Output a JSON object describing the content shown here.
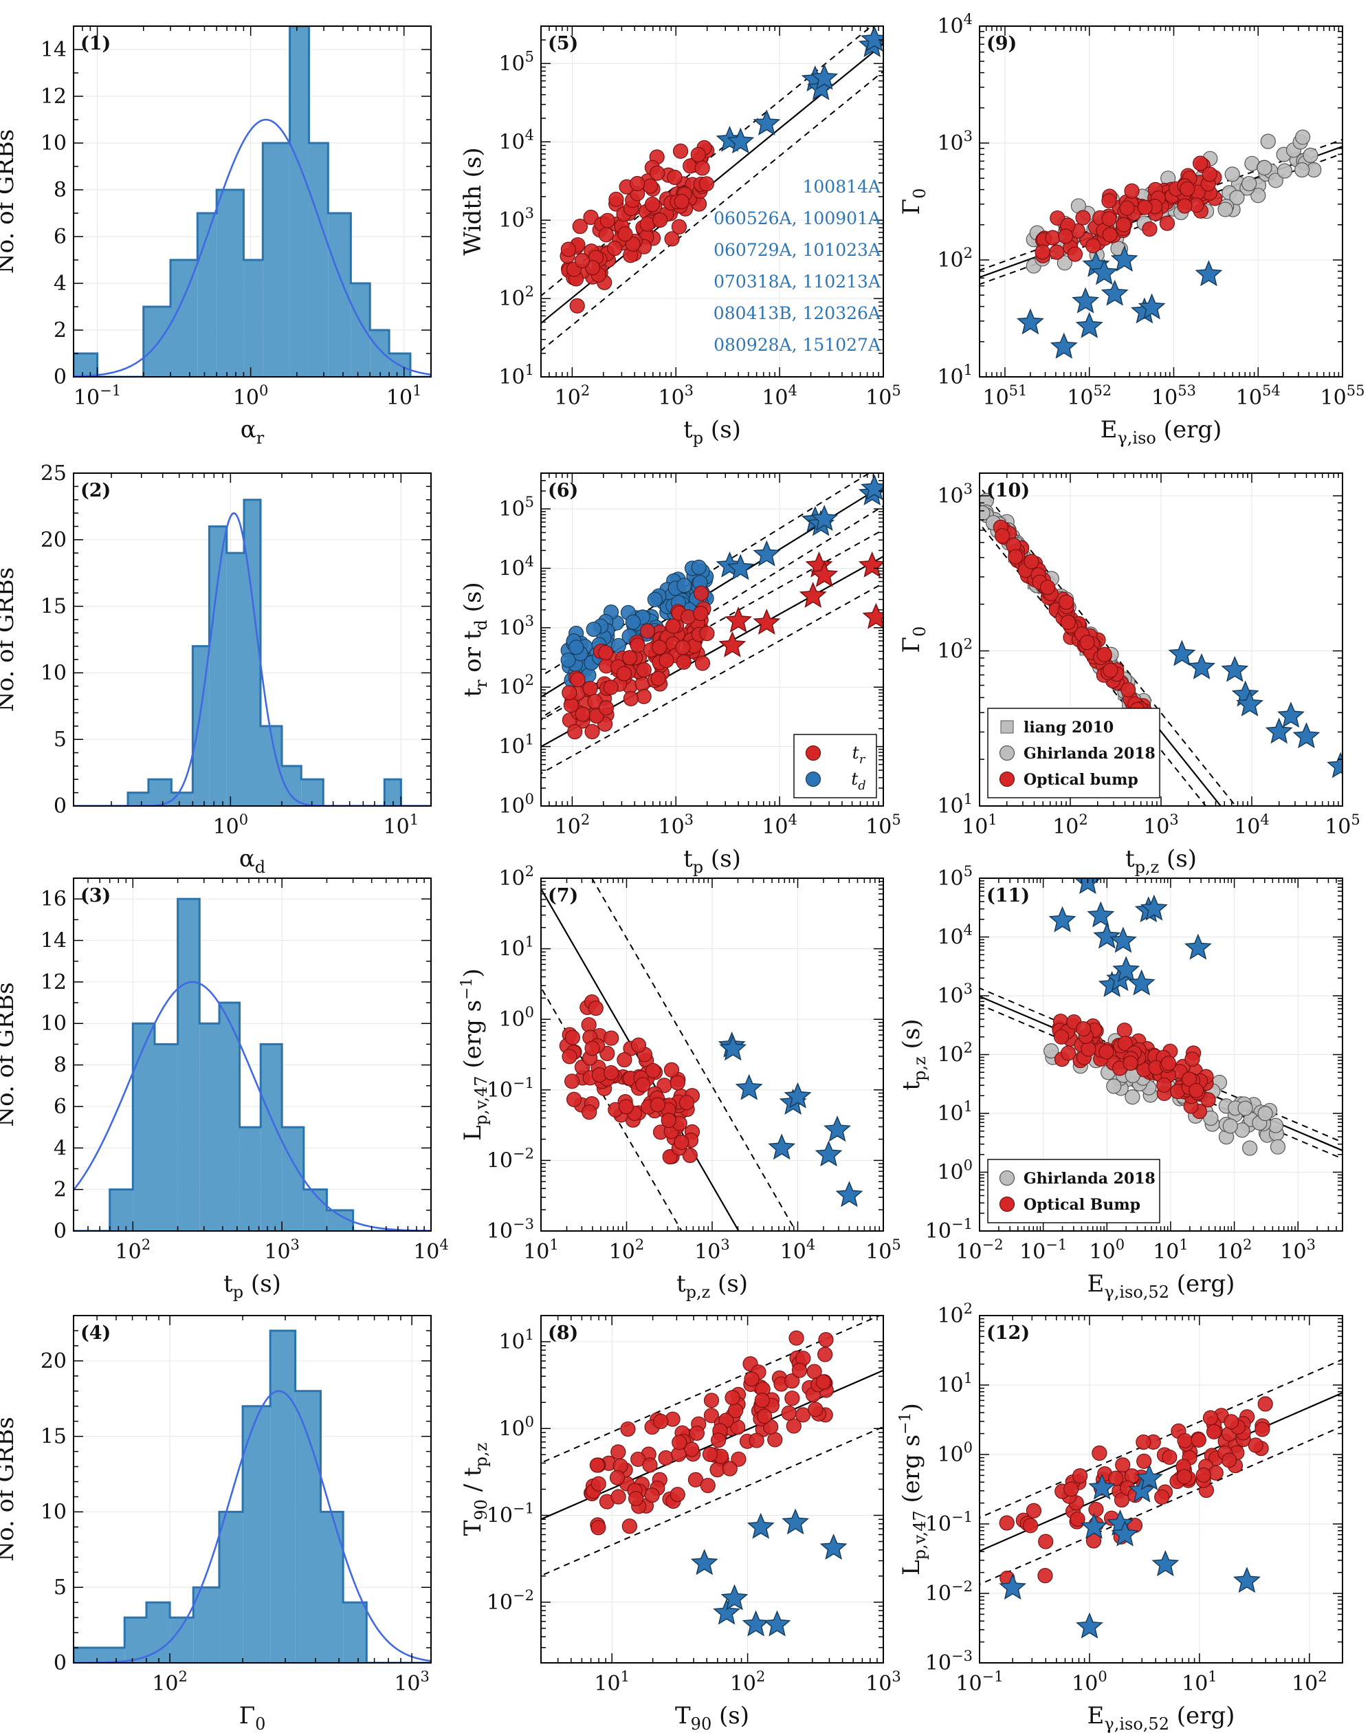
{
  "colors": {
    "hist": "#5a9ec9",
    "hist_edge": "#2a73ad",
    "curve": "#4169e1",
    "red": "#d62728",
    "blue": "#2e75b6",
    "gray": "#bdbdbd"
  },
  "chart_data": [
    {
      "panel": 1,
      "type": "bar",
      "label": "(1)",
      "xlabel": "α_r",
      "ylabel": "No. of GRBs",
      "xscale": "log",
      "xlim": [
        0.07,
        15
      ],
      "ylim": [
        0,
        15
      ],
      "xticks": [
        "10^-1",
        "10^0",
        "10^1"
      ],
      "yticks": [
        "0",
        "2",
        "4",
        "6",
        "8",
        "10",
        "12",
        "14"
      ],
      "bin_edges": [
        0.07,
        0.1,
        0.2,
        0.3,
        0.45,
        0.6,
        0.9,
        1.2,
        1.8,
        2.4,
        3.2,
        4.5,
        6,
        8,
        11,
        15
      ],
      "counts": [
        1,
        0,
        3,
        5,
        7,
        8,
        5,
        10,
        15,
        10,
        7,
        4,
        2,
        1,
        0
      ],
      "fit": {
        "peak": 11,
        "mu_log10": 0.1,
        "sigma_log10": 0.35
      }
    },
    {
      "panel": 2,
      "type": "bar",
      "label": "(2)",
      "xlabel": "α_d",
      "ylabel": "No. of GRBs",
      "xscale": "log",
      "xlim": [
        0.12,
        15
      ],
      "ylim": [
        0,
        25
      ],
      "xticks": [
        "10^0",
        "10^1"
      ],
      "yticks": [
        "0",
        "5",
        "10",
        "15",
        "20",
        "25"
      ],
      "bin_edges": [
        0.12,
        0.25,
        0.33,
        0.45,
        0.6,
        0.75,
        0.95,
        1.2,
        1.5,
        2,
        2.6,
        3.5,
        4.6,
        6,
        7,
        8,
        10,
        15
      ],
      "counts": [
        0,
        1,
        2,
        1,
        12,
        21,
        19,
        23,
        6,
        3,
        2,
        0,
        0,
        0,
        0,
        2,
        0
      ],
      "fit": {
        "peak": 22,
        "mu_log10": 0.02,
        "sigma_log10": 0.13
      }
    },
    {
      "panel": 3,
      "type": "bar",
      "label": "(3)",
      "xlabel": "t_p (s)",
      "ylabel": "No. of GRBs",
      "xscale": "log",
      "xlim": [
        40,
        10000
      ],
      "ylim": [
        0,
        17
      ],
      "xticks": [
        "10^2",
        "10^3",
        "10^4"
      ],
      "yticks": [
        "0",
        "2",
        "4",
        "6",
        "8",
        "10",
        "12",
        "14",
        "16"
      ],
      "bin_edges": [
        40,
        70,
        100,
        140,
        200,
        280,
        380,
        520,
        720,
        1000,
        1400,
        2000,
        3000,
        10000
      ],
      "counts": [
        0,
        2,
        10,
        9,
        16,
        10,
        11,
        5,
        9,
        5,
        2,
        1,
        0
      ],
      "fit": {
        "peak": 12,
        "mu_log10": 2.4,
        "sigma_log10": 0.42
      }
    },
    {
      "panel": 4,
      "type": "bar",
      "label": "(4)",
      "xlabel": "Γ_0",
      "ylabel": "No. of GRBs",
      "xscale": "log",
      "xlim": [
        40,
        1200
      ],
      "ylim": [
        0,
        23
      ],
      "xticks": [
        "10^2",
        "10^3"
      ],
      "yticks": [
        "0",
        "5",
        "10",
        "15",
        "20"
      ],
      "bin_edges": [
        40,
        65,
        80,
        100,
        125,
        160,
        200,
        260,
        330,
        420,
        520,
        650,
        1200
      ],
      "counts": [
        1,
        3,
        4,
        3,
        5,
        10,
        17,
        22,
        18,
        10,
        4,
        0
      ],
      "fit": {
        "peak": 18,
        "mu_log10": 2.45,
        "sigma_log10": 0.2
      }
    },
    {
      "panel": 5,
      "type": "scatter",
      "label": "(5)",
      "xlabel": "t_p (s)",
      "ylabel": "Width (s)",
      "xlim": [
        50,
        100000
      ],
      "ylim": [
        10,
        300000
      ],
      "xticks": [
        "10^2",
        "10^3",
        "10^4",
        "10^5"
      ],
      "yticks": [
        "10^1",
        "10^2",
        "10^3",
        "10^4",
        "10^5"
      ],
      "fit": {
        "slope": 1.08,
        "intercept": -0.15,
        "band": 0.35
      },
      "annotations": [
        "100814A",
        "060526A, 100901A",
        "060729A, 101023A",
        "070318A, 110213A",
        "080413B, 120326A",
        "080928A, 151027A"
      ],
      "series": [
        {
          "name": "Optical bump",
          "marker": "circle",
          "color": "red",
          "n": 110,
          "seed": 5,
          "xlog": [
            1.95,
            3.3
          ],
          "slope": 1.0,
          "intercept": 0.35,
          "scatter": 0.35
        },
        {
          "name": "stars",
          "marker": "star",
          "color": "blue",
          "x": [
            3300,
            4200,
            7500,
            22000,
            25000,
            27000,
            78000,
            82000
          ],
          "y": [
            10500,
            10000,
            17000,
            62000,
            48000,
            65000,
            170000,
            200000
          ]
        }
      ]
    },
    {
      "panel": 6,
      "type": "scatter",
      "label": "(6)",
      "xlabel": "t_p (s)",
      "ylabel": "t_r or t_d (s)",
      "xlim": [
        50,
        100000
      ],
      "ylim": [
        1,
        400000
      ],
      "xticks": [
        "10^2",
        "10^3",
        "10^4",
        "10^5"
      ],
      "yticks": [
        "10^0",
        "10^1",
        "10^2",
        "10^3",
        "10^4",
        "10^5"
      ],
      "legend": [
        {
          "name": "t_r",
          "color": "red"
        },
        {
          "name": "t_d",
          "color": "blue"
        }
      ],
      "fits": [
        {
          "slope": 1.08,
          "intercept": 0.0,
          "band": 0.35
        },
        {
          "slope": 0.97,
          "intercept": -0.65,
          "band": 0.45
        }
      ],
      "series": [
        {
          "name": "t_d",
          "marker": "circle",
          "color": "blue",
          "n": 110,
          "seed": 6,
          "xlog": [
            1.95,
            3.3
          ],
          "slope": 1.0,
          "intercept": 0.45,
          "scatter": 0.3
        },
        {
          "name": "t_r",
          "marker": "circle",
          "color": "red",
          "n": 110,
          "seed": 7,
          "xlog": [
            1.95,
            3.3
          ],
          "slope": 1.0,
          "intercept": -0.3,
          "scatter": 0.4
        },
        {
          "name": "t_d stars",
          "marker": "star",
          "color": "blue",
          "x": [
            3300,
            4200,
            7500,
            22000,
            25000,
            27000,
            78000,
            82000
          ],
          "y": [
            11000,
            10000,
            17000,
            64000,
            55000,
            67000,
            180000,
            220000
          ]
        },
        {
          "name": "t_r stars",
          "marker": "star",
          "color": "red",
          "x": [
            3500,
            4000,
            7500,
            21000,
            24000,
            27000,
            78000,
            85000
          ],
          "y": [
            500,
            1300,
            1200,
            3400,
            11000,
            7600,
            11000,
            1500
          ]
        }
      ]
    },
    {
      "panel": 7,
      "type": "scatter",
      "label": "(7)",
      "xlabel": "t_p,z (s)",
      "ylabel": "L_p,v,47 (erg s^-1)",
      "xlim": [
        10,
        100000
      ],
      "ylim": [
        0.001,
        100
      ],
      "xticks": [
        "10^1",
        "10^2",
        "10^3",
        "10^4",
        "10^5"
      ],
      "yticks": [
        "10^-3",
        "10^-2",
        "10^-1",
        "10^0",
        "10^1",
        "10^2"
      ],
      "fit": {
        "slope": -2.1,
        "intercept": 3.95,
        "band": 1.4
      },
      "series": [
        {
          "name": "Optical bump",
          "marker": "circle",
          "color": "red",
          "n": 95,
          "seed": 8,
          "xlog": [
            1.3,
            2.8
          ],
          "slope": -0.8,
          "intercept": 0.7,
          "scatter": 0.55
        },
        {
          "name": "stars",
          "marker": "star",
          "color": "blue",
          "x": [
            1700,
            1750,
            2700,
            6500,
            8800,
            10000,
            23000,
            29000,
            40000
          ],
          "y": [
            0.42,
            0.38,
            0.105,
            0.015,
            0.065,
            0.08,
            0.012,
            0.027,
            0.0032
          ]
        }
      ]
    },
    {
      "panel": 8,
      "type": "scatter",
      "label": "(8)",
      "xlabel": "T_90 (s)",
      "ylabel": "T_90 / t_p,z",
      "xlim": [
        3,
        1000
      ],
      "ylim": [
        0.002,
        20
      ],
      "xticks": [
        "10^1",
        "10^2",
        "10^3"
      ],
      "yticks": [
        "10^-2",
        "10^-1",
        "10^0",
        "10^1"
      ],
      "fit": {
        "slope": 0.68,
        "intercept": -1.37,
        "band": 0.65
      },
      "series": [
        {
          "name": "Optical bump",
          "marker": "circle",
          "color": "red",
          "n": 115,
          "seed": 9,
          "xlog": [
            0.8,
            2.6
          ],
          "slope": 0.75,
          "intercept": -1.35,
          "scatter": 0.4
        },
        {
          "name": "stars",
          "marker": "star",
          "color": "blue",
          "x": [
            48,
            70,
            80,
            115,
            125,
            165,
            225,
            430
          ],
          "y": [
            0.028,
            0.0075,
            0.011,
            0.0055,
            0.073,
            0.0055,
            0.082,
            0.042
          ]
        }
      ]
    },
    {
      "panel": 9,
      "type": "scatter",
      "label": "(9)",
      "xlabel": "E_γ,iso (erg)",
      "ylabel": "Γ_0",
      "xlim": [
        5e+50,
        1e+55
      ],
      "ylim": [
        10,
        10000
      ],
      "xticks": [
        "10^51",
        "10^52",
        "10^53",
        "10^54",
        "10^55"
      ],
      "yticks": [
        "10^1",
        "10^2",
        "10^3",
        "10^4"
      ],
      "fit": {
        "slope": 0.26,
        "intercept": -11.33,
        "band": 0.06
      },
      "series": [
        {
          "name": "Ghirlanda 2018",
          "marker": "circle",
          "color": "gray",
          "n": 75,
          "seed": 10,
          "xlog": [
            51.3,
            54.7
          ],
          "slope": 0.26,
          "intercept": -11.3,
          "scatter": 0.18
        },
        {
          "name": "Optical bump",
          "marker": "circle",
          "color": "red",
          "n": 100,
          "seed": 11,
          "xlog": [
            51.4,
            53.5
          ],
          "slope": 0.24,
          "intercept": -10.2,
          "scatter": 0.14
        },
        {
          "name": "stars",
          "marker": "star",
          "color": "blue",
          "x": [
            2e+51,
            5e+51,
            9e+51,
            1e+52,
            1.2e+52,
            1.5e+52,
            2e+52,
            2.6e+52,
            4.5e+52,
            5.5e+52,
            2.6e+53
          ],
          "y": [
            29,
            18,
            44,
            27,
            90,
            77,
            51,
            100,
            36,
            39,
            75
          ]
        }
      ]
    },
    {
      "panel": 10,
      "type": "scatter",
      "label": "(10)",
      "xlabel": "t_p,z (s)",
      "ylabel": "Γ_0",
      "xlim": [
        10,
        100000
      ],
      "ylim": [
        10,
        1400
      ],
      "xticks": [
        "10^1",
        "10^2",
        "10^3",
        "10^4",
        "10^5"
      ],
      "yticks": [
        "10^1",
        "10^2",
        "10^3"
      ],
      "legend": [
        {
          "name": "liang 2010",
          "color": "gray",
          "marker": "square"
        },
        {
          "name": "Ghirlanda 2018",
          "color": "gray"
        },
        {
          "name": "Optical bump",
          "color": "red"
        }
      ],
      "fit": {
        "slope": -0.73,
        "intercept": 3.67,
        "band": 0.12
      },
      "series": [
        {
          "name": "liang 2010",
          "marker": "square",
          "color": "gray",
          "n": 20,
          "seed": 12,
          "xlog": [
            1.1,
            2.8
          ],
          "slope": -0.75,
          "intercept": 3.7,
          "scatter": 0.05
        },
        {
          "name": "Ghirlanda 2018",
          "marker": "circle",
          "color": "gray",
          "n": 70,
          "seed": 13,
          "xlog": [
            1.0,
            2.9
          ],
          "slope": -0.75,
          "intercept": 3.72,
          "scatter": 0.06
        },
        {
          "name": "Optical bump",
          "marker": "circle",
          "color": "red",
          "n": 100,
          "seed": 14,
          "xlog": [
            1.2,
            2.9
          ],
          "slope": -0.75,
          "intercept": 3.7,
          "scatter": 0.06
        },
        {
          "name": "stars",
          "marker": "star",
          "color": "blue",
          "x": [
            1700,
            2800,
            6500,
            8500,
            9500,
            20000,
            27000,
            40000,
            95000
          ],
          "y": [
            95,
            78,
            75,
            52,
            45,
            30,
            38,
            28,
            18
          ]
        }
      ]
    },
    {
      "panel": 11,
      "type": "scatter",
      "label": "(11)",
      "xlabel": "E_γ,iso,52 (erg)",
      "ylabel": "t_p,z (s)",
      "xlim": [
        0.01,
        5000
      ],
      "ylim": [
        0.1,
        100000
      ],
      "xticks": [
        "10^-2",
        "10^-1",
        "10^0",
        "10^1",
        "10^2",
        "10^3"
      ],
      "yticks": [
        "10^-1",
        "10^0",
        "10^1",
        "10^2",
        "10^3",
        "10^4",
        "10^5"
      ],
      "legend": [
        {
          "name": "Ghirlanda 2018",
          "color": "gray"
        },
        {
          "name": "Optical Bump",
          "color": "red"
        }
      ],
      "fit": {
        "slope": -0.46,
        "intercept": 2.07,
        "band": 0.14
      },
      "series": [
        {
          "name": "Ghirlanda 2018",
          "marker": "circle",
          "color": "gray",
          "n": 70,
          "seed": 15,
          "xlog": [
            -1.0,
            2.7
          ],
          "slope": -0.45,
          "intercept": 1.9,
          "scatter": 0.3
        },
        {
          "name": "Optical Bump",
          "marker": "circle",
          "color": "red",
          "n": 100,
          "seed": 16,
          "xlog": [
            -0.8,
            1.6
          ],
          "slope": -0.4,
          "intercept": 2.1,
          "scatter": 0.3
        },
        {
          "name": "stars",
          "marker": "star",
          "color": "blue",
          "x": [
            0.2,
            0.5,
            0.8,
            1.0,
            1.2,
            1.6,
            1.8,
            2.0,
            3.5,
            4.5,
            5.5,
            27
          ],
          "y": [
            19000,
            85000,
            23000,
            10000,
            1500,
            1900,
            8500,
            2700,
            1600,
            28000,
            30000,
            6500
          ]
        }
      ]
    },
    {
      "panel": 12,
      "type": "scatter",
      "label": "(12)",
      "xlabel": "E_γ,iso,52 (erg)",
      "ylabel": "L_p,v,47 (erg s^-1)",
      "xlim": [
        0.1,
        200
      ],
      "ylim": [
        0.001,
        100
      ],
      "xticks": [
        "10^-1",
        "10^0",
        "10^1",
        "10^2"
      ],
      "yticks": [
        "10^-3",
        "10^-2",
        "10^-1",
        "10^0",
        "10^1",
        "10^2"
      ],
      "fit": {
        "slope": 0.69,
        "intercept": -0.7,
        "band": 0.48
      },
      "series": [
        {
          "name": "Optical bump",
          "marker": "circle",
          "color": "red",
          "n": 90,
          "seed": 17,
          "xlog": [
            -0.8,
            1.6
          ],
          "slope": 0.55,
          "intercept": -0.6,
          "scatter": 0.45
        },
        {
          "name": "stars",
          "marker": "star",
          "color": "blue",
          "x": [
            0.2,
            1.0,
            1.1,
            1.3,
            1.9,
            2.1,
            3.0,
            3.5,
            4.9,
            27
          ],
          "y": [
            0.012,
            0.0033,
            0.09,
            0.33,
            0.1,
            0.07,
            0.3,
            0.45,
            0.026,
            0.015
          ]
        }
      ]
    }
  ]
}
